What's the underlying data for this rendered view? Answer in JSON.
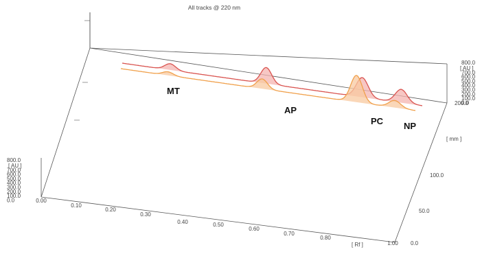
{
  "chart_data": {
    "type": "line",
    "title": "All tracks @ 220 nm",
    "xlabel": "[ Rf ]",
    "ylabel": "[ mm ]",
    "zlabel": "[ AU ]",
    "x_ticks": [
      "0.00",
      "0.10",
      "0.20",
      "0.30",
      "0.40",
      "0.50",
      "0.60",
      "0.70",
      "0.80",
      "1.00"
    ],
    "y_ticks": [
      "0.0",
      "50.0",
      "100.0",
      "200.0"
    ],
    "z_ticks": [
      "800.0",
      "700.0",
      "600.0",
      "500.0",
      "400.0",
      "300.0",
      "200.0",
      "100.0",
      "0.0"
    ],
    "peak_labels": [
      "MT",
      "AP",
      "PC",
      "NP"
    ],
    "series": [
      {
        "color": "#d9534f",
        "fill": "#f4b4b0",
        "peaks": [
          {
            "rf": 0.16,
            "au": 70
          },
          {
            "rf": 0.48,
            "au": 180
          },
          {
            "rf": 0.8,
            "au": 220
          },
          {
            "rf": 0.93,
            "au": 150
          }
        ]
      },
      {
        "color": "#f0a04b",
        "fill": "#f8c9a0",
        "peaks": [
          {
            "rf": 0.16,
            "au": 40
          },
          {
            "rf": 0.48,
            "au": 110
          },
          {
            "rf": 0.8,
            "au": 300
          },
          {
            "rf": 0.93,
            "au": 80
          }
        ]
      }
    ],
    "grid": false
  }
}
